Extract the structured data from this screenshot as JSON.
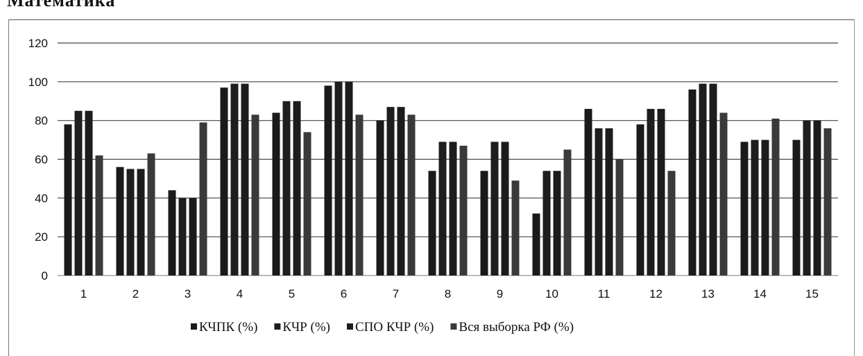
{
  "heading": "Математика",
  "chart_data": {
    "type": "bar",
    "categories": [
      "1",
      "2",
      "3",
      "4",
      "5",
      "6",
      "7",
      "8",
      "9",
      "10",
      "11",
      "12",
      "13",
      "14",
      "15"
    ],
    "series": [
      {
        "name": "КЧПК (%)",
        "values": [
          78,
          56,
          44,
          97,
          84,
          98,
          80,
          54,
          54,
          32,
          86,
          78,
          96,
          69,
          70
        ]
      },
      {
        "name": "КЧР (%)",
        "values": [
          85,
          55,
          40,
          99,
          90,
          100,
          87,
          69,
          69,
          54,
          76,
          86,
          99,
          70,
          80
        ]
      },
      {
        "name": "СПО КЧР (%)",
        "values": [
          85,
          55,
          40,
          99,
          90,
          100,
          87,
          69,
          69,
          54,
          76,
          86,
          99,
          70,
          80
        ]
      },
      {
        "name": "Вся выборка РФ (%)",
        "values": [
          62,
          63,
          79,
          83,
          74,
          83,
          83,
          67,
          49,
          65,
          60,
          54,
          84,
          81,
          76
        ]
      }
    ],
    "yticks": [
      0,
      20,
      40,
      60,
      80,
      100,
      120
    ],
    "ylim": [
      0,
      120
    ],
    "grid": true,
    "legend": "bottom",
    "colors": [
      "#1a1a1a",
      "#1e1e1e",
      "#1c1c1c",
      "#3a3a3a"
    ]
  }
}
